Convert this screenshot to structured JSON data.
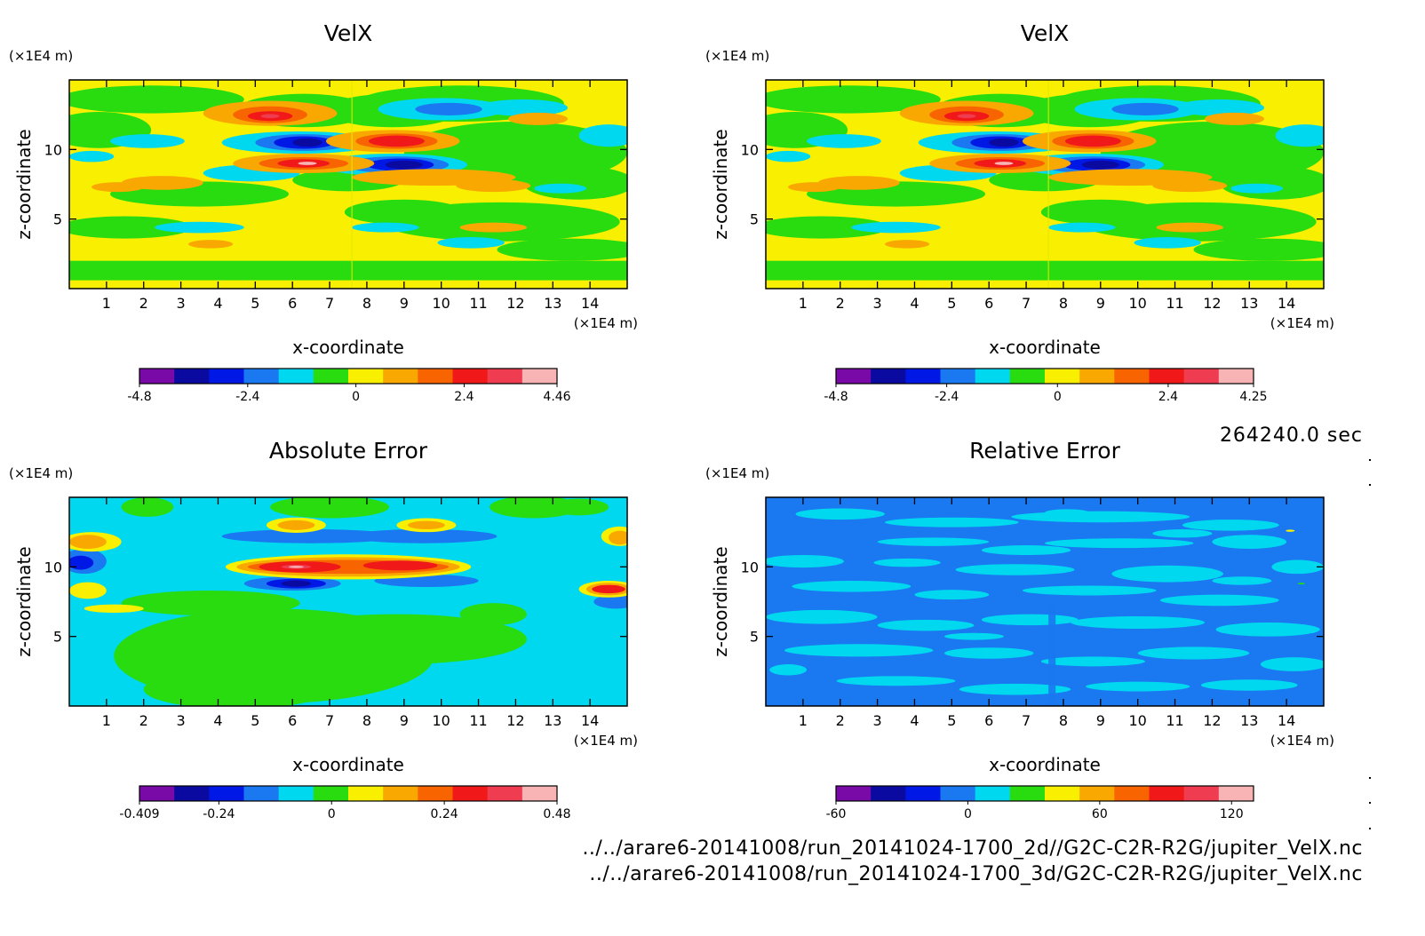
{
  "timestamp": "264240.0 sec",
  "footer": {
    "line1": "../../arare6-20141008/run_20141024-1700_2d//G2C-C2R-R2G/jupiter_VelX.nc",
    "line2": "../../arare6-20141008/run_20141024-1700_3d/G2C-C2R-R2G/jupiter_VelX.nc"
  },
  "palette": [
    "#7a0aa8",
    "#0a0aa0",
    "#0018e6",
    "#1a78f0",
    "#00d8f0",
    "#28dc10",
    "#f8f000",
    "#f8a800",
    "#f86400",
    "#f01818",
    "#f03c50",
    "#f8b4b4"
  ],
  "chart_data": [
    {
      "type": "heatmap",
      "title": "VelX",
      "xlabel": "x-coordinate",
      "ylabel": "z-coordinate",
      "x_unit": "(×1E4 m)",
      "y_unit": "(×1E4 m)",
      "xlim": [
        0,
        15
      ],
      "ylim": [
        0,
        15
      ],
      "xticks": [
        "1",
        "2",
        "3",
        "4",
        "5",
        "6",
        "7",
        "8",
        "9",
        "10",
        "11",
        "12",
        "13",
        "14"
      ],
      "yticks": [
        "5",
        "10"
      ],
      "colorbar_ticks": [
        "-4.8",
        "-2.4",
        "0",
        "2.4",
        "4.46"
      ],
      "colorbar_range": [
        -4.8,
        4.46
      ],
      "pattern": "velx"
    },
    {
      "type": "heatmap",
      "title": "VelX",
      "xlabel": "x-coordinate",
      "ylabel": "z-coordinate",
      "x_unit": "(×1E4 m)",
      "y_unit": "(×1E4 m)",
      "xlim": [
        0,
        15
      ],
      "ylim": [
        0,
        15
      ],
      "xticks": [
        "1",
        "2",
        "3",
        "4",
        "5",
        "6",
        "7",
        "8",
        "9",
        "10",
        "11",
        "12",
        "13",
        "14"
      ],
      "yticks": [
        "5",
        "10"
      ],
      "colorbar_ticks": [
        "-4.8",
        "-2.4",
        "0",
        "2.4",
        "4.25"
      ],
      "colorbar_range": [
        -4.8,
        4.25
      ],
      "pattern": "velx"
    },
    {
      "type": "heatmap",
      "title": "Absolute Error",
      "xlabel": "x-coordinate",
      "ylabel": "z-coordinate",
      "x_unit": "(×1E4 m)",
      "y_unit": "(×1E4 m)",
      "xlim": [
        0,
        15
      ],
      "ylim": [
        0,
        15
      ],
      "xticks": [
        "1",
        "2",
        "3",
        "4",
        "5",
        "6",
        "7",
        "8",
        "9",
        "10",
        "11",
        "12",
        "13",
        "14"
      ],
      "yticks": [
        "5",
        "10"
      ],
      "colorbar_ticks": [
        "-0.409",
        "-0.24",
        "0",
        "0.24",
        "0.48"
      ],
      "colorbar_range": [
        -0.409,
        0.48
      ],
      "pattern": "abs"
    },
    {
      "type": "heatmap",
      "title": "Relative Error",
      "xlabel": "x-coordinate",
      "ylabel": "z-coordinate",
      "x_unit": "(×1E4 m)",
      "y_unit": "(×1E4 m)",
      "xlim": [
        0,
        15
      ],
      "ylim": [
        0,
        15
      ],
      "xticks": [
        "1",
        "2",
        "3",
        "4",
        "5",
        "6",
        "7",
        "8",
        "9",
        "10",
        "11",
        "12",
        "13",
        "14"
      ],
      "yticks": [
        "5",
        "10"
      ],
      "colorbar_ticks": [
        "-60",
        "0",
        "60",
        "120"
      ],
      "colorbar_range": [
        -60,
        130
      ],
      "pattern": "rel"
    }
  ]
}
